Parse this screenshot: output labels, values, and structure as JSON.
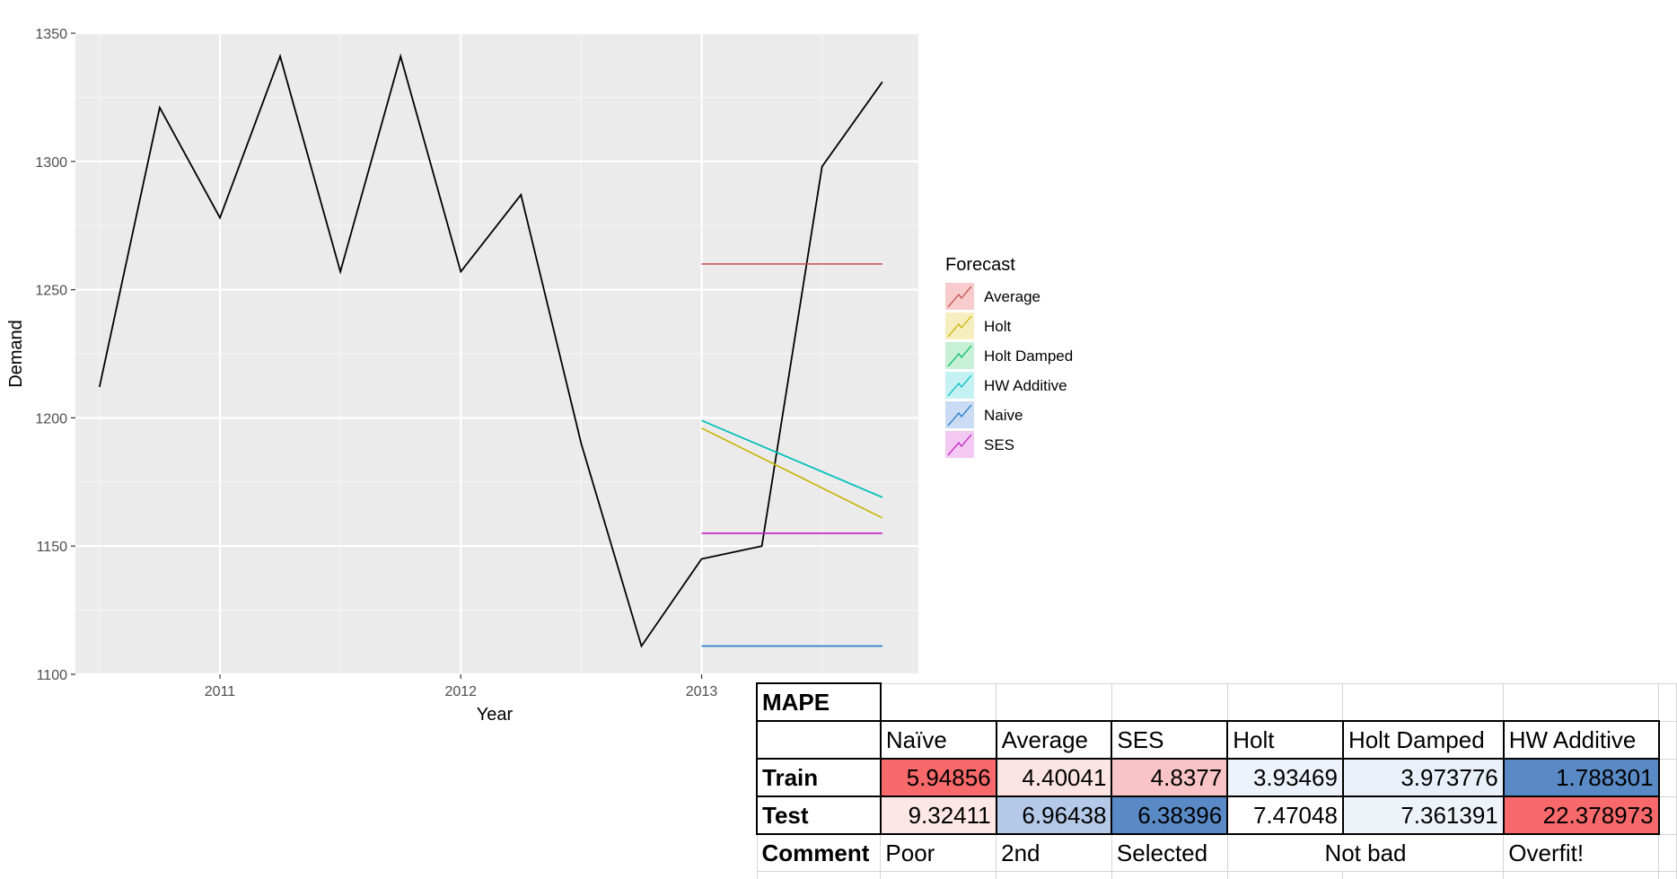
{
  "chart_data": {
    "type": "line",
    "xlabel": "Year",
    "ylabel": "Demand",
    "xlim": [
      2010.4,
      2013.9
    ],
    "ylim": [
      1100,
      1350
    ],
    "x_ticks": [
      2011,
      2012,
      2013
    ],
    "y_ticks": [
      1100,
      1150,
      1200,
      1250,
      1300,
      1350
    ],
    "grid": true,
    "actual": {
      "x": [
        2010.5,
        2010.75,
        2011.0,
        2011.25,
        2011.5,
        2011.75,
        2012.0,
        2012.25,
        2012.5,
        2012.75,
        2013.0,
        2013.25,
        2013.5,
        2013.75
      ],
      "y": [
        1212,
        1321,
        1278,
        1341,
        1257,
        1341,
        1257,
        1287,
        1190,
        1111,
        1145,
        1150,
        1298,
        1331
      ],
      "color": "#000000"
    },
    "legend_title": "Forecast",
    "legend_position": "right",
    "series": [
      {
        "name": "Average",
        "color": "#c0504d",
        "x": [
          2013.0,
          2013.75
        ],
        "y": [
          1260,
          1260
        ]
      },
      {
        "name": "Holt",
        "color": "#c8b400",
        "x": [
          2013.0,
          2013.75
        ],
        "y": [
          1196,
          1161
        ]
      },
      {
        "name": "Holt Damped",
        "color": "#00c060",
        "x": [
          2013.0,
          2013.75
        ],
        "y": [
          1199,
          1169
        ]
      },
      {
        "name": "HW Additive",
        "color": "#00bfc4",
        "x": [
          2013.0,
          2013.75
        ],
        "y": [
          1199,
          1169
        ]
      },
      {
        "name": "Naive",
        "color": "#1f78c8",
        "x": [
          2013.0,
          2013.75
        ],
        "y": [
          1111,
          1111
        ]
      },
      {
        "name": "SES",
        "color": "#c020c0",
        "x": [
          2013.0,
          2013.75
        ],
        "y": [
          1155,
          1155
        ]
      }
    ],
    "legend_fills": [
      "#f8cccc",
      "#f7eec0",
      "#c7f0d6",
      "#c5f1f2",
      "#c9dcf4",
      "#f3c8f2"
    ]
  },
  "table": {
    "title": "MAPE",
    "headers": [
      "Naïve",
      "Average",
      "SES",
      "Holt",
      "Holt Damped",
      "HW Additive"
    ],
    "rows": [
      {
        "label": "Train",
        "values": [
          "5.94856",
          "4.40041",
          "4.8377",
          "3.93469",
          "3.973776",
          "1.788301"
        ],
        "colors": [
          "#f8696b",
          "#fde4e4",
          "#f9c4c5",
          "#eef2fa",
          "#eaf0f9",
          "#5a8ac6"
        ]
      },
      {
        "label": "Test",
        "values": [
          "9.32411",
          "6.96438",
          "6.38396",
          "7.47048",
          "7.361391",
          "22.378973"
        ],
        "colors": [
          "#fde6e6",
          "#b4c9e8",
          "#5a8ac6",
          "#ffffff",
          "#eef3fa",
          "#f8696b"
        ]
      }
    ],
    "comment_label": "Comment",
    "comments": [
      "Poor",
      "2nd",
      "Selected",
      "Not bad",
      "Overfit!"
    ]
  }
}
